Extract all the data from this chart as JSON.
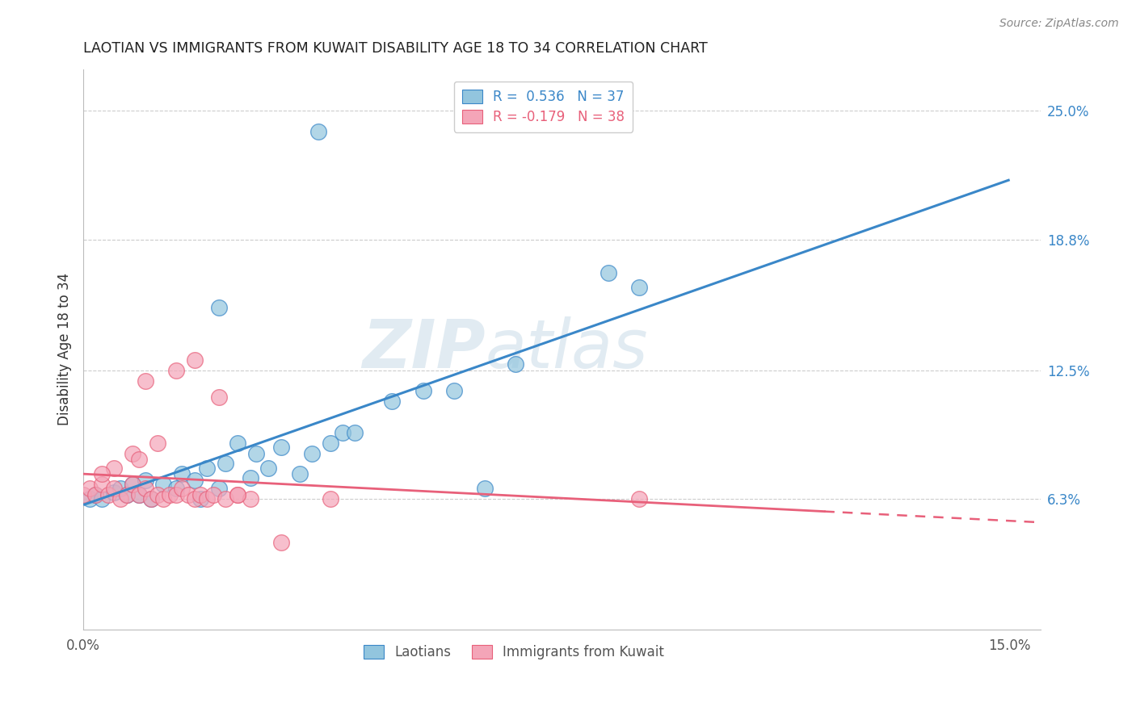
{
  "title": "LAOTIAN VS IMMIGRANTS FROM KUWAIT DISABILITY AGE 18 TO 34 CORRELATION CHART",
  "source": "Source: ZipAtlas.com",
  "ylabel": "Disability Age 18 to 34",
  "xlim": [
    0.0,
    0.155
  ],
  "ylim": [
    0.0,
    0.27
  ],
  "xticks": [
    0.0,
    0.05,
    0.1,
    0.15
  ],
  "xtick_labels": [
    "0.0%",
    "",
    "",
    "15.0%"
  ],
  "ytick_labels_right": [
    "6.3%",
    "12.5%",
    "18.8%",
    "25.0%"
  ],
  "ytick_vals_right": [
    0.063,
    0.125,
    0.188,
    0.25
  ],
  "legend_entry1": "R =  0.536   N = 37",
  "legend_entry2": "R = -0.179   N = 38",
  "legend_label1": "Laotians",
  "legend_label2": "Immigrants from Kuwait",
  "color_blue": "#92c5de",
  "color_pink": "#f4a5b8",
  "color_blue_line": "#3a87c8",
  "color_pink_line": "#e8607a",
  "watermark_zip": "ZIP",
  "watermark_atlas": "atlas",
  "blue_scatter_x": [
    0.001,
    0.002,
    0.003,
    0.005,
    0.006,
    0.007,
    0.008,
    0.009,
    0.01,
    0.011,
    0.013,
    0.015,
    0.016,
    0.018,
    0.019,
    0.02,
    0.022,
    0.023,
    0.025,
    0.027,
    0.028,
    0.03,
    0.032,
    0.035,
    0.037,
    0.04,
    0.042,
    0.044,
    0.05,
    0.055,
    0.06,
    0.065,
    0.07,
    0.085,
    0.09,
    0.022,
    0.038
  ],
  "blue_scatter_y": [
    0.063,
    0.065,
    0.063,
    0.066,
    0.068,
    0.065,
    0.07,
    0.065,
    0.072,
    0.063,
    0.07,
    0.068,
    0.075,
    0.072,
    0.063,
    0.078,
    0.068,
    0.08,
    0.09,
    0.073,
    0.085,
    0.078,
    0.088,
    0.075,
    0.085,
    0.09,
    0.095,
    0.095,
    0.11,
    0.115,
    0.115,
    0.068,
    0.128,
    0.172,
    0.165,
    0.155,
    0.24
  ],
  "pink_scatter_x": [
    0.0,
    0.001,
    0.002,
    0.003,
    0.004,
    0.005,
    0.006,
    0.007,
    0.008,
    0.009,
    0.01,
    0.011,
    0.012,
    0.013,
    0.014,
    0.015,
    0.016,
    0.017,
    0.018,
    0.019,
    0.02,
    0.021,
    0.023,
    0.025,
    0.027,
    0.01,
    0.015,
    0.018,
    0.022,
    0.008,
    0.012,
    0.009,
    0.005,
    0.003,
    0.04,
    0.09,
    0.032,
    0.025
  ],
  "pink_scatter_y": [
    0.065,
    0.068,
    0.065,
    0.07,
    0.065,
    0.068,
    0.063,
    0.065,
    0.07,
    0.065,
    0.068,
    0.063,
    0.065,
    0.063,
    0.065,
    0.065,
    0.068,
    0.065,
    0.063,
    0.065,
    0.063,
    0.065,
    0.063,
    0.065,
    0.063,
    0.12,
    0.125,
    0.13,
    0.112,
    0.085,
    0.09,
    0.082,
    0.078,
    0.075,
    0.063,
    0.063,
    0.042,
    0.065
  ]
}
